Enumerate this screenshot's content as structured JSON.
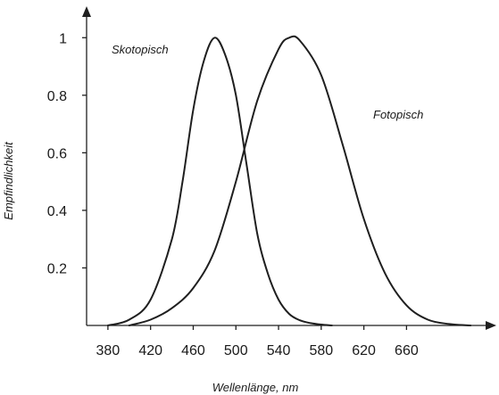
{
  "chart_data": {
    "type": "line",
    "xlabel": "Wellenlänge, nm",
    "ylabel": "Empfindlichkeit",
    "xlim": [
      360,
      735
    ],
    "ylim": [
      0,
      1.1
    ],
    "x_ticks": [
      "380",
      "420",
      "460",
      "500",
      "540",
      "580",
      "620",
      "660"
    ],
    "y_ticks": [
      "0.2",
      "0.4",
      "0.6",
      "0.8",
      "1"
    ],
    "series": [
      {
        "name": "Skotopisch",
        "x": [
          380,
          400,
          420,
          440,
          450,
          460,
          470,
          480,
          490,
          500,
          510,
          520,
          530,
          540,
          550,
          560,
          570,
          580,
          590
        ],
        "y": [
          0.0,
          0.02,
          0.09,
          0.3,
          0.5,
          0.75,
          0.92,
          1.0,
          0.94,
          0.8,
          0.56,
          0.32,
          0.18,
          0.09,
          0.04,
          0.018,
          0.008,
          0.003,
          0.0
        ]
      },
      {
        "name": "Fotopisch",
        "x": [
          400,
          420,
          440,
          460,
          480,
          500,
          520,
          540,
          550,
          560,
          580,
          600,
          620,
          640,
          660,
          680,
          700,
          720
        ],
        "y": [
          0.0,
          0.02,
          0.06,
          0.13,
          0.26,
          0.5,
          0.78,
          0.96,
          1.0,
          0.99,
          0.87,
          0.63,
          0.37,
          0.18,
          0.07,
          0.02,
          0.005,
          0.0
        ]
      }
    ]
  }
}
